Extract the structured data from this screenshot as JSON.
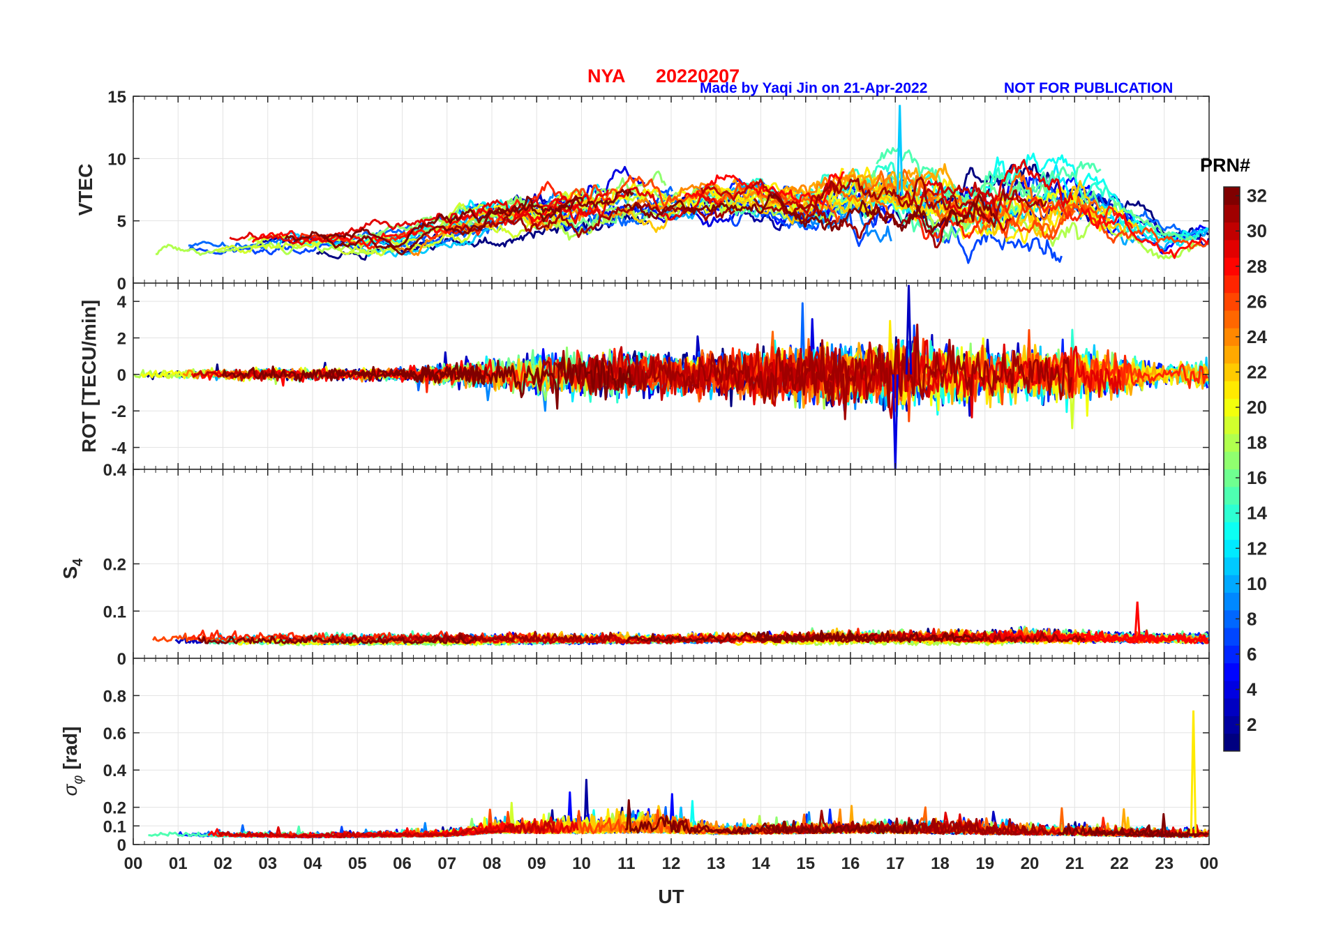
{
  "header": {
    "station": "NYA",
    "date": "20220207",
    "credit": "Made by Yaqi Jin on 21-Apr-2022",
    "notice": "NOT FOR PUBLICATION"
  },
  "colorbar": {
    "title": "PRN#",
    "range": [
      1,
      32
    ],
    "tick_labels": [
      "2",
      "4",
      "6",
      "8",
      "10",
      "12",
      "14",
      "16",
      "18",
      "20",
      "22",
      "24",
      "26",
      "28",
      "30",
      "32"
    ],
    "colormap": "jet",
    "levels": 32
  },
  "chart_data": [
    {
      "id": "vtec",
      "type": "line",
      "ylabel": "VTEC",
      "ylim": [
        0,
        15
      ],
      "yticks": [
        0,
        5,
        10,
        15
      ],
      "ytick_labels": [
        "0",
        "5",
        "10",
        "15"
      ],
      "xlim": [
        0,
        24
      ],
      "grid": true,
      "series_note": "One trace per GPS PRN (1-32), colored by PRN#",
      "trend": {
        "ut_hours": [
          0,
          2,
          4,
          6,
          7,
          8,
          9,
          10,
          11,
          12,
          13,
          14,
          15,
          16,
          17,
          18,
          19,
          20,
          21,
          22,
          23,
          24
        ],
        "values": [
          2.6,
          3.0,
          3.3,
          3.3,
          4.3,
          5.3,
          5.6,
          6.0,
          6.5,
          6.5,
          7.0,
          7.0,
          6.0,
          7.2,
          7.2,
          6.2,
          6.4,
          7.2,
          7.2,
          5.7,
          3.5,
          4.0
        ],
        "spread": [
          0.8,
          0.9,
          1.1,
          1.2,
          1.5,
          1.8,
          2.0,
          2.2,
          2.2,
          2.0,
          2.0,
          2.0,
          2.0,
          3.2,
          3.2,
          3.0,
          3.2,
          3.4,
          3.2,
          2.4,
          1.4,
          1.4
        ]
      },
      "peak": {
        "ut": 17.1,
        "value": 14.3
      }
    },
    {
      "id": "rot",
      "type": "line",
      "ylabel": "ROT [TECU/min]",
      "ylim": [
        -5.2,
        5.0
      ],
      "yticks": [
        -4,
        -2,
        0,
        2,
        4
      ],
      "ytick_labels": [
        "-4",
        "-2",
        "0",
        "2",
        "4"
      ],
      "xlim": [
        0,
        24
      ],
      "grid": true,
      "trend": {
        "ut_hours": [
          0,
          2,
          4,
          6,
          7,
          8,
          10,
          12,
          14,
          16,
          17,
          18,
          20,
          22,
          23,
          24
        ],
        "values": [
          0,
          0,
          0,
          0,
          0,
          0,
          0,
          0,
          0,
          0,
          0,
          0,
          0,
          0,
          0,
          0
        ],
        "spread": [
          0.25,
          0.35,
          0.4,
          0.35,
          0.7,
          1.0,
          1.5,
          1.3,
          1.6,
          1.9,
          2.2,
          1.9,
          1.8,
          1.3,
          0.5,
          1.0
        ]
      },
      "extremes": {
        "max": {
          "ut": 17.3,
          "value": 4.9
        },
        "min": {
          "ut": 17.0,
          "value": -5.2
        }
      }
    },
    {
      "id": "s4",
      "type": "line",
      "ylabel": "S4",
      "ylim": [
        0,
        0.4
      ],
      "yticks": [
        0,
        0.1,
        0.2,
        0.4
      ],
      "ytick_labels": [
        "0",
        "0.1",
        "0.2",
        "0.4"
      ],
      "xlim": [
        0,
        24
      ],
      "grid": true,
      "trend": {
        "ut_hours": [
          0,
          4,
          8,
          12,
          16,
          20,
          24
        ],
        "values": [
          0.04,
          0.04,
          0.04,
          0.04,
          0.045,
          0.045,
          0.04
        ],
        "spread": [
          0.02,
          0.02,
          0.02,
          0.02,
          0.025,
          0.025,
          0.02
        ]
      },
      "peak": {
        "ut": 22.4,
        "value": 0.12
      }
    },
    {
      "id": "sigma_phi",
      "type": "line",
      "ylabel": "σ_φ [rad]",
      "ylim": [
        0,
        1
      ],
      "yticks": [
        0,
        0.1,
        0.2,
        0.4,
        0.6,
        0.8
      ],
      "ytick_labels": [
        "0",
        "0.1",
        "0.2",
        "0.4",
        "0.6",
        "0.8"
      ],
      "xlim": [
        0,
        24
      ],
      "grid": true,
      "trend": {
        "ut_hours": [
          0,
          4,
          7,
          8,
          10,
          11.5,
          13,
          16,
          17,
          20,
          22,
          23.5,
          24
        ],
        "values": [
          0.06,
          0.05,
          0.06,
          0.09,
          0.1,
          0.12,
          0.08,
          0.09,
          0.1,
          0.08,
          0.07,
          0.06,
          0.06
        ],
        "spread": [
          0.03,
          0.03,
          0.04,
          0.07,
          0.1,
          0.14,
          0.06,
          0.07,
          0.1,
          0.07,
          0.06,
          0.05,
          0.04
        ]
      },
      "peak": {
        "ut": 23.65,
        "value": 0.72
      }
    }
  ],
  "x_axis": {
    "label": "UT",
    "range": [
      0,
      24
    ],
    "tick_labels": [
      "00",
      "01",
      "02",
      "03",
      "04",
      "05",
      "06",
      "07",
      "08",
      "09",
      "10",
      "11",
      "12",
      "13",
      "14",
      "15",
      "16",
      "17",
      "18",
      "19",
      "20",
      "21",
      "22",
      "23",
      "00"
    ]
  }
}
